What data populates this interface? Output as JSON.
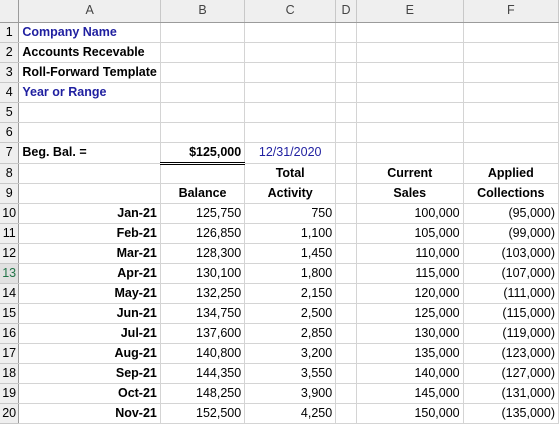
{
  "columns": [
    "A",
    "B",
    "C",
    "D",
    "E",
    "F"
  ],
  "rows": [
    "1",
    "2",
    "3",
    "4",
    "5",
    "6",
    "7",
    "8",
    "9",
    "10",
    "11",
    "12",
    "13",
    "14",
    "15",
    "16",
    "17",
    "18",
    "19",
    "20"
  ],
  "header": {
    "company": "Company Name",
    "accounts": "Accounts Recevable",
    "template": "Roll-Forward Template",
    "year": "Year or Range"
  },
  "beg": {
    "label": "Beg. Bal. =",
    "value": "$125,000",
    "date": "12/31/2020"
  },
  "colheads": {
    "total": "Total",
    "current": "Current",
    "applied": "Applied",
    "balance": "Balance",
    "activity": "Activity",
    "sales": "Sales",
    "collections": "Collections"
  },
  "data": [
    {
      "month": "Jan-21",
      "balance": "125,750",
      "activity": "750",
      "sales": "100,000",
      "collections": "(95,000)"
    },
    {
      "month": "Feb-21",
      "balance": "126,850",
      "activity": "1,100",
      "sales": "105,000",
      "collections": "(99,000)"
    },
    {
      "month": "Mar-21",
      "balance": "128,300",
      "activity": "1,450",
      "sales": "110,000",
      "collections": "(103,000)"
    },
    {
      "month": "Apr-21",
      "balance": "130,100",
      "activity": "1,800",
      "sales": "115,000",
      "collections": "(107,000)"
    },
    {
      "month": "May-21",
      "balance": "132,250",
      "activity": "2,150",
      "sales": "120,000",
      "collections": "(111,000)"
    },
    {
      "month": "Jun-21",
      "balance": "134,750",
      "activity": "2,500",
      "sales": "125,000",
      "collections": "(115,000)"
    },
    {
      "month": "Jul-21",
      "balance": "137,600",
      "activity": "2,850",
      "sales": "130,000",
      "collections": "(119,000)"
    },
    {
      "month": "Aug-21",
      "balance": "140,800",
      "activity": "3,200",
      "sales": "135,000",
      "collections": "(123,000)"
    },
    {
      "month": "Sep-21",
      "balance": "144,350",
      "activity": "3,550",
      "sales": "140,000",
      "collections": "(127,000)"
    },
    {
      "month": "Oct-21",
      "balance": "148,250",
      "activity": "3,900",
      "sales": "145,000",
      "collections": "(131,000)"
    },
    {
      "month": "Nov-21",
      "balance": "152,500",
      "activity": "4,250",
      "sales": "150,000",
      "collections": "(135,000)"
    }
  ]
}
